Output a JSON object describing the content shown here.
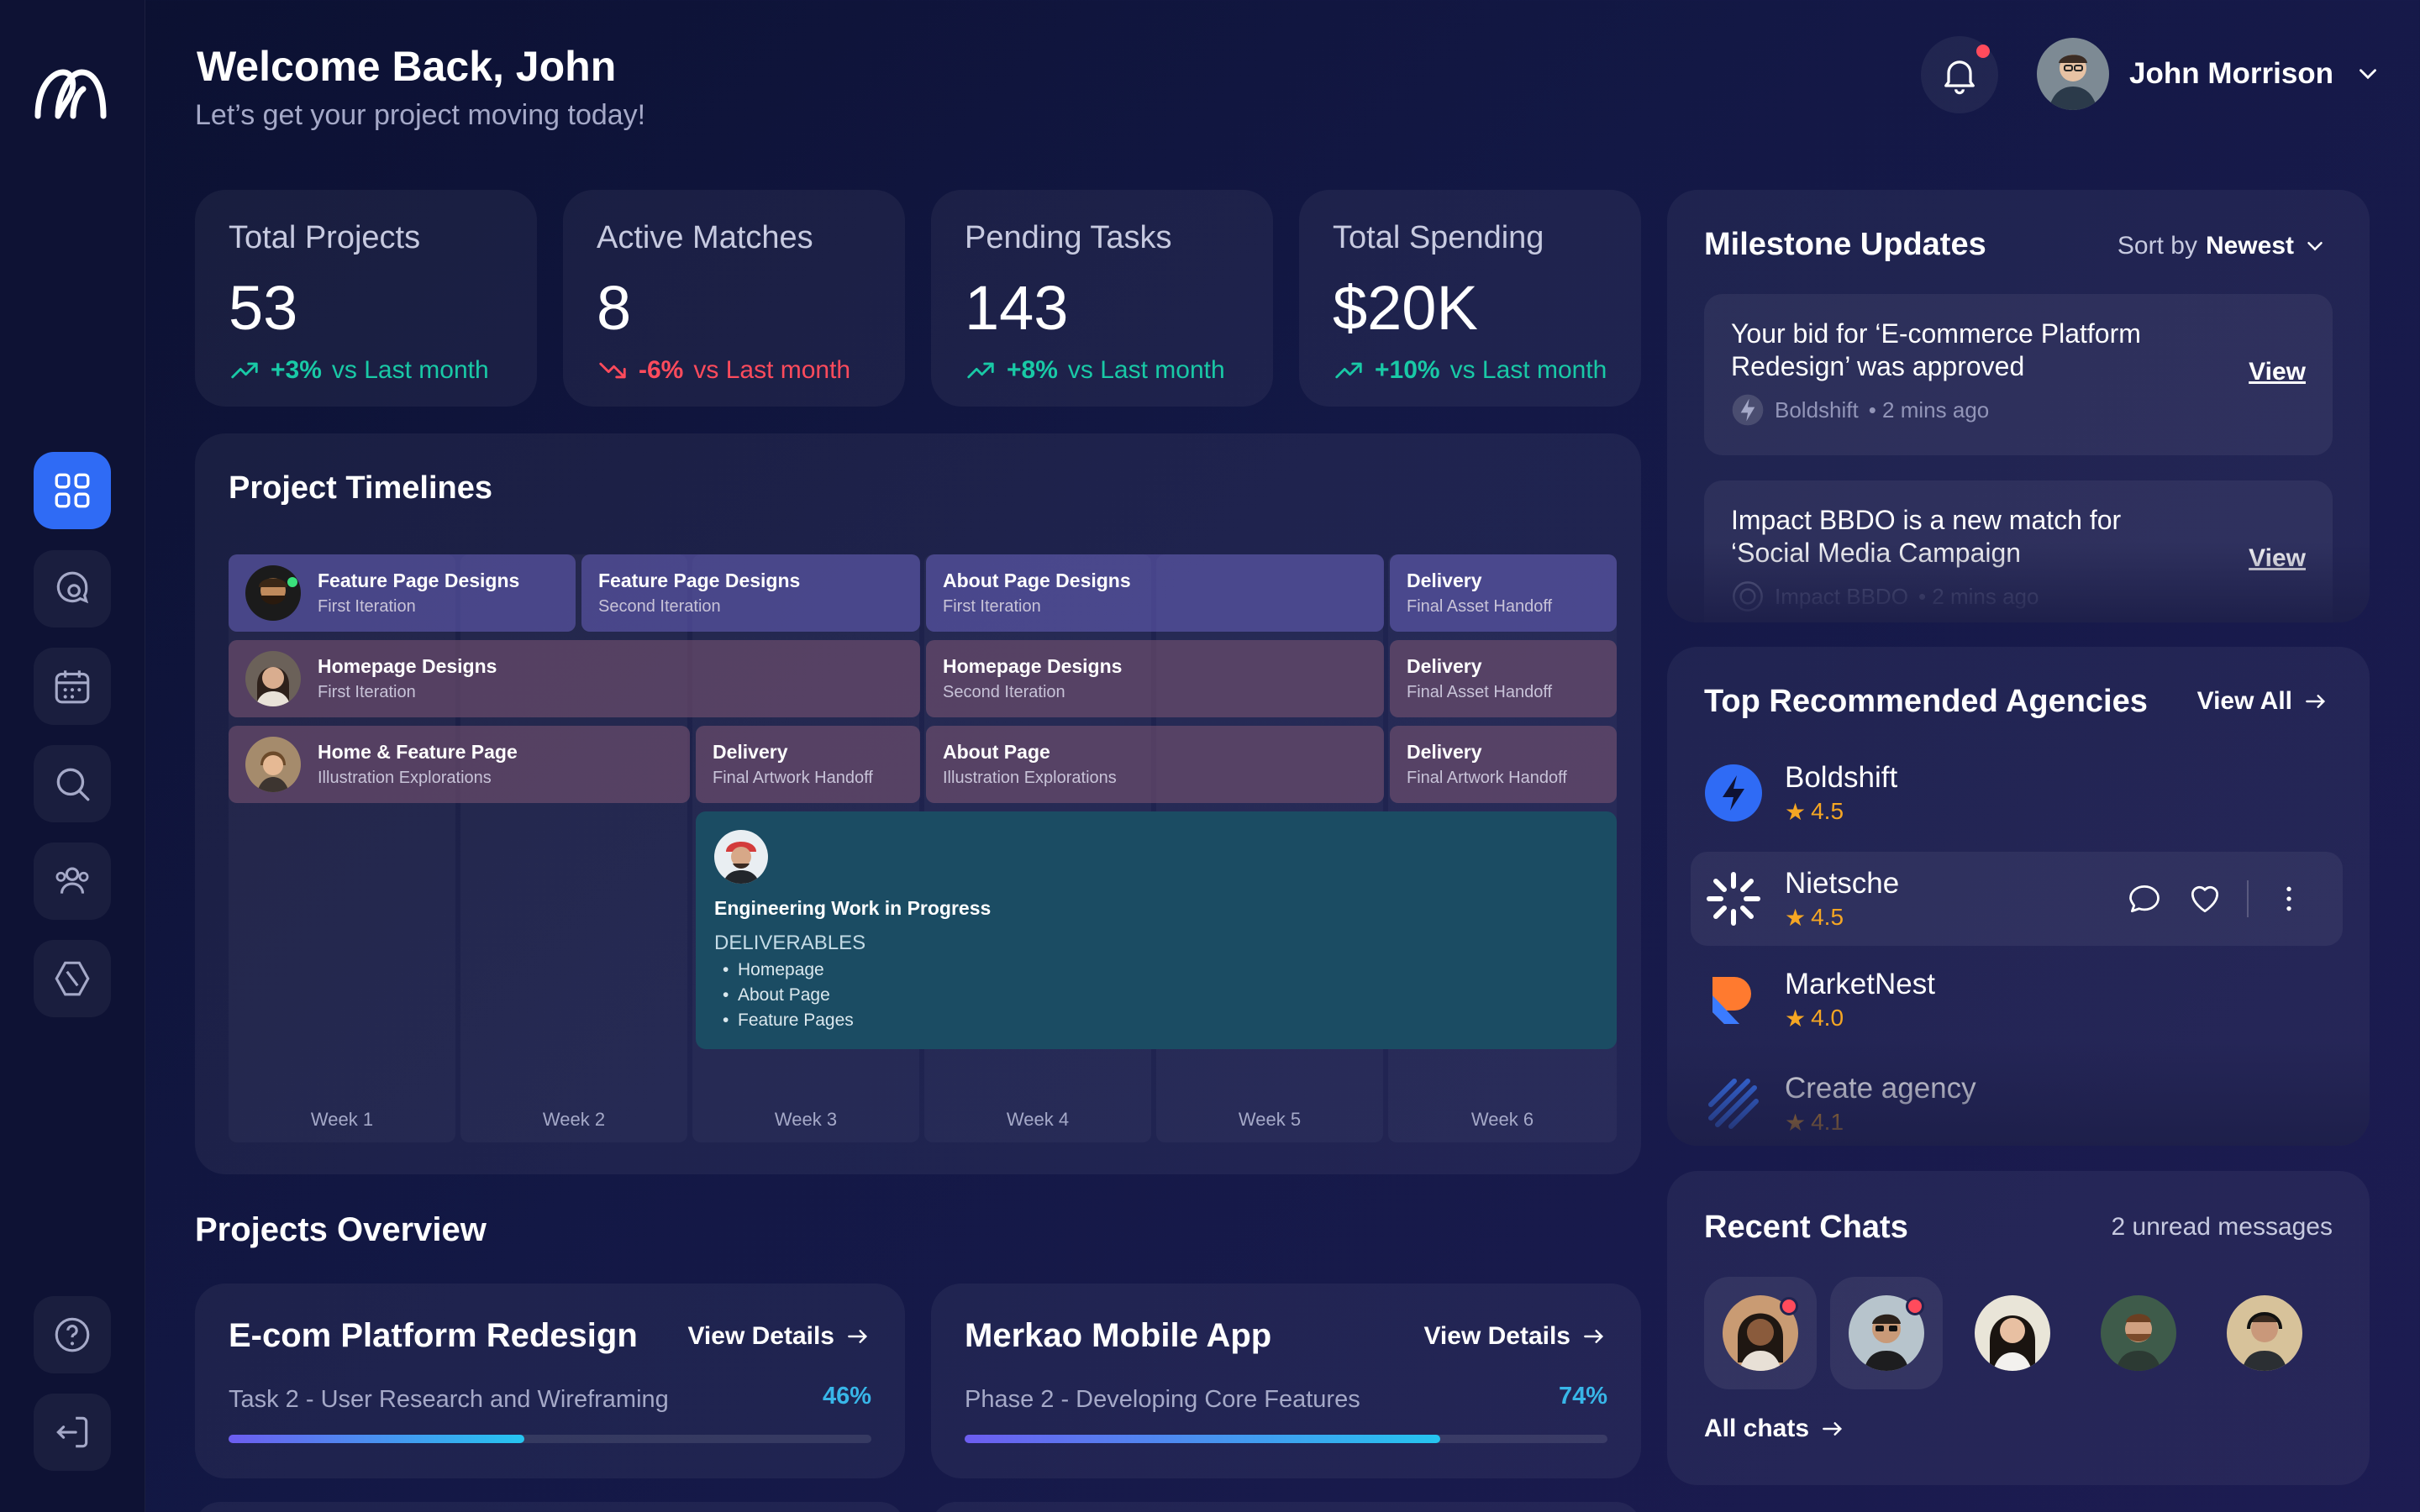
{
  "header": {
    "title": "Welcome Back, John",
    "subtitle": "Let’s get your project moving today!"
  },
  "user": {
    "name": "John Morrison"
  },
  "stats": [
    {
      "title": "Total Projects",
      "value": "53",
      "change": "+3%",
      "suffix": "vs Last month",
      "trend": "up"
    },
    {
      "title": "Active Matches",
      "value": "8",
      "change": "-6%",
      "suffix": "vs Last month",
      "trend": "down"
    },
    {
      "title": "Pending Tasks",
      "value": "143",
      "change": "+8%",
      "suffix": "vs Last month",
      "trend": "up"
    },
    {
      "title": "Total Spending",
      "value": "$20K",
      "change": "+10%",
      "suffix": "vs Last month",
      "trend": "up"
    }
  ],
  "timelines": {
    "title": "Project Timelines",
    "weeks": [
      "Week 1",
      "Week 2",
      "Week 3",
      "Week 4",
      "Week 5",
      "Week 6"
    ],
    "rows": [
      [
        {
          "title": "Feature Page Designs",
          "sub": "First Iteration"
        },
        {
          "title": "Feature Page Designs",
          "sub": "Second Iteration"
        },
        {
          "title": "About Page Designs",
          "sub": "First Iteration"
        },
        {
          "title": "Delivery",
          "sub": "Final Asset Handoff"
        }
      ],
      [
        {
          "title": "Homepage Designs",
          "sub": "First Iteration"
        },
        {
          "title": "Homepage Designs",
          "sub": "Second Iteration"
        },
        {
          "title": "Delivery",
          "sub": "Final Asset Handoff"
        }
      ],
      [
        {
          "title": "Home & Feature Page",
          "sub": "Illustration Explorations"
        },
        {
          "title": "Delivery",
          "sub": "Final Artwork Handoff"
        },
        {
          "title": "About Page",
          "sub": "Illustration Explorations"
        },
        {
          "title": "Delivery",
          "sub": "Final Artwork Handoff"
        }
      ]
    ],
    "engineering": {
      "title": "Engineering Work in Progress",
      "subtitle": "DELIVERABLES",
      "items": [
        "Homepage",
        "About Page",
        "Feature Pages"
      ]
    }
  },
  "overview": {
    "title": "Projects Overview",
    "link_label": "View Details",
    "projects": [
      {
        "name": "E-com Platform Redesign",
        "task": "Task 2 - User Research and Wireframing",
        "percent_label": "46%",
        "progress": 0.46
      },
      {
        "name": "Merkao Mobile App",
        "task": "Phase 2 - Developing Core Features",
        "percent_label": "74%",
        "progress": 0.74
      }
    ]
  },
  "milestones": {
    "title": "Milestone Updates",
    "sort_prefix": "Sort by",
    "sort_value": "Newest",
    "items": [
      {
        "text": "Your bid for ‘E-commerce Platform Redesign’ was approved",
        "source": "Boldshift",
        "time": "• 2 mins ago",
        "action": "View"
      },
      {
        "text": "Impact BBDO is a new match for ‘Social Media Campaign",
        "source": "Impact BBDO",
        "time": "• 2 mins ago",
        "action": "View"
      }
    ]
  },
  "agencies": {
    "title": "Top Recommended Agencies",
    "view_all": "View All",
    "items": [
      {
        "name": "Boldshift",
        "rating": "4.5",
        "color": "#2f6bf5"
      },
      {
        "name": "Nietsche",
        "rating": "4.5",
        "color": "#ffffff"
      },
      {
        "name": "MarketNest",
        "rating": "4.0",
        "color": "#ff7a2f"
      },
      {
        "name": "Create agency",
        "rating": "4.1",
        "color": "#3b7bff"
      }
    ]
  },
  "chats": {
    "title": "Recent Chats",
    "unread": "2 unread messages",
    "all_chats": "All chats"
  },
  "colors": {
    "accent": "#2f6bf5",
    "positive": "#19c9a6",
    "negative": "#ff4b5c",
    "rating": "#f5a623",
    "progress": "#38b6e8"
  }
}
